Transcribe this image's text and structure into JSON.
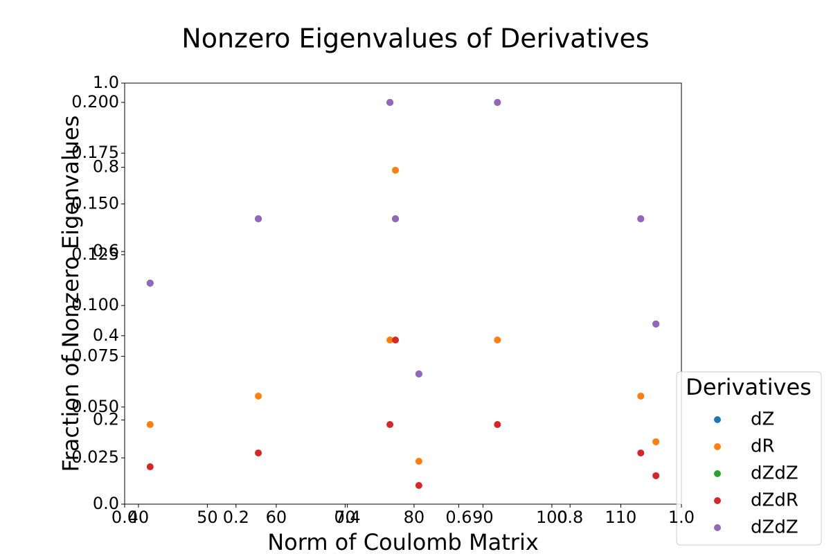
{
  "chart_data": {
    "type": "scatter",
    "title": "Nonzero Eigenvalues of Derivatives",
    "x_label": "Norm of Coulomb Matrix",
    "y_label": "Fraction of Nonzero Eigenvalues",
    "x": [
      41.7,
      57.4,
      76.5,
      77.3,
      80.7,
      92.1,
      112.9,
      115.1
    ],
    "series": [
      {
        "name": "dZ",
        "color": "#1f77b4",
        "values": [
          0.111,
          0.1427,
          0.2,
          0.1427,
          0.0663,
          0.2,
          0.1427,
          0.0909
        ]
      },
      {
        "name": "dR",
        "color": "#ff7f0e",
        "values": [
          0.0414,
          0.0554,
          0.083,
          0.1666,
          0.0233,
          0.083,
          0.0554,
          0.0329
        ]
      },
      {
        "name": "dZdZ",
        "color": "#2ca02c",
        "values": [
          0.111,
          0.1427,
          0.2,
          0.1427,
          0.0663,
          0.2,
          0.1427,
          0.0909
        ]
      },
      {
        "name": "dZdR",
        "color": "#d62728",
        "values": [
          0.0206,
          0.0274,
          0.0414,
          0.083,
          0.0114,
          0.0414,
          0.0274,
          0.0162
        ]
      },
      {
        "name": "dZdZ",
        "color": "#9467bd",
        "values": [
          0.111,
          0.1427,
          0.2,
          0.1427,
          0.0663,
          0.2,
          0.1427,
          0.0909
        ]
      }
    ],
    "xlim": [
      38.0,
      118.8
    ],
    "xticks": [
      40,
      50,
      60,
      70,
      80,
      90,
      100,
      110
    ],
    "ylim": [
      0.0022,
      0.2095
    ],
    "yticks": [
      0.025,
      {
        "value": 0.05,
        "label": "0.050"
      },
      0.075,
      {
        "value": 0.1,
        "label": "0.100"
      },
      0.125,
      {
        "value": 0.15,
        "label": "0.150"
      },
      0.175,
      {
        "value": 0.2,
        "label": "0.200"
      }
    ],
    "frame_xlim": [
      0,
      1
    ],
    "frame_xticks": [
      {
        "value": 0,
        "label": "0.0"
      },
      0.2,
      0.4,
      0.6,
      0.8,
      {
        "value": 1,
        "label": "1.0"
      }
    ],
    "frame_ylim": [
      0,
      1
    ],
    "frame_yticks": [
      {
        "value": 0,
        "label": "0.0"
      },
      0.2,
      0.4,
      0.6,
      0.8,
      {
        "value": 1,
        "label": "1.0"
      }
    ],
    "legend_title": "Derivatives",
    "legend_position": "lower right outside",
    "grid": false
  }
}
